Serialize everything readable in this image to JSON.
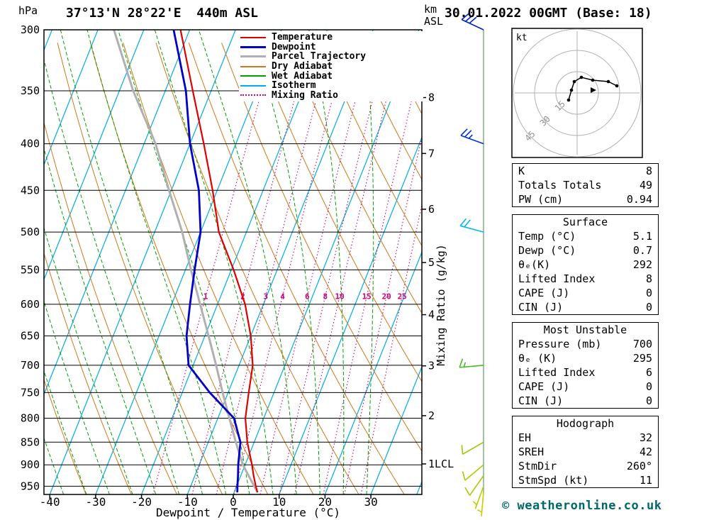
{
  "header": {
    "station_title": "37°13'N 28°22'E  440m ASL",
    "datetime_title": "30.01.2022 00GMT (Base: 18)"
  },
  "axes": {
    "pressure_unit": "hPa",
    "altitude_unit": [
      "km",
      "ASL"
    ],
    "x_axis_title": "Dewpoint / Temperature (°C)",
    "mixing_ratio_axis_title": "Mixing Ratio (g/kg)"
  },
  "legend": [
    {
      "label": "Temperature",
      "color_key": "temperature",
      "style": "solid",
      "weight": 2
    },
    {
      "label": "Dewpoint",
      "color_key": "dewpoint",
      "style": "solid",
      "weight": 3
    },
    {
      "label": "Parcel Trajectory",
      "color_key": "parcel",
      "style": "solid",
      "weight": 3
    },
    {
      "label": "Dry Adiabat",
      "color_key": "dry_adiabat",
      "style": "solid",
      "weight": 2
    },
    {
      "label": "Wet Adiabat",
      "color_key": "wet_adiabat",
      "style": "solid",
      "weight": 2
    },
    {
      "label": "Isotherm",
      "color_key": "isotherm",
      "style": "solid",
      "weight": 2
    },
    {
      "label": "Mixing Ratio",
      "color_key": "mixing_ratio",
      "style": "dotted",
      "weight": 2
    }
  ],
  "chart_data": {
    "type": "skewt_log_p",
    "colors": {
      "temperature": "#e00000",
      "dewpoint": "#0000c8",
      "parcel": "#b0b0b0",
      "dry_adiabat": "#d07818",
      "wet_adiabat": "#00a000",
      "isotherm": "#00ace6",
      "mixing_ratio": "#cc0077"
    },
    "pressure_ticks": [
      300,
      350,
      400,
      450,
      500,
      550,
      600,
      650,
      700,
      750,
      800,
      850,
      900,
      950
    ],
    "pressure_range": [
      300,
      970
    ],
    "temp_ticks": [
      -40,
      -30,
      -20,
      -10,
      0,
      10,
      20,
      30
    ],
    "km_ticks": [
      {
        "label": "8",
        "p": 356
      },
      {
        "label": "7",
        "p": 410
      },
      {
        "label": "6",
        "p": 472
      },
      {
        "label": "5",
        "p": 540
      },
      {
        "label": "4",
        "p": 616
      },
      {
        "label": "3",
        "p": 701
      },
      {
        "label": "2",
        "p": 795
      },
      {
        "label": "1LCL",
        "p": 898
      }
    ],
    "mixing_ratio_lines": [
      1,
      2,
      3,
      4,
      6,
      8,
      10,
      15,
      20,
      25
    ],
    "isotherms": {
      "min": -80,
      "max": 40,
      "step": 10
    },
    "dry_adiabats_theta_c": {
      "min": -40,
      "max": 120,
      "step": 10
    },
    "wet_adiabats_thetaw_c": {
      "min": -40,
      "max": 30,
      "step": 5
    },
    "temperature_profile": [
      [
        965,
        5.1
      ],
      [
        950,
        4.2
      ],
      [
        925,
        2.8
      ],
      [
        900,
        1.5
      ],
      [
        850,
        -1.5
      ],
      [
        800,
        -4.0
      ],
      [
        750,
        -5.5
      ],
      [
        700,
        -7.0
      ],
      [
        650,
        -10.0
      ],
      [
        600,
        -14.0
      ],
      [
        550,
        -19.5
      ],
      [
        500,
        -26.0
      ],
      [
        450,
        -31.0
      ],
      [
        400,
        -37.0
      ],
      [
        350,
        -44.0
      ],
      [
        300,
        -52.0
      ]
    ],
    "dewpoint_profile": [
      [
        965,
        0.7
      ],
      [
        950,
        0.2
      ],
      [
        925,
        -0.6
      ],
      [
        900,
        -1.5
      ],
      [
        850,
        -3.0
      ],
      [
        800,
        -6.5
      ],
      [
        750,
        -14.0
      ],
      [
        700,
        -21.0
      ],
      [
        650,
        -24.0
      ],
      [
        600,
        -26.0
      ],
      [
        550,
        -28.0
      ],
      [
        500,
        -30.0
      ],
      [
        450,
        -34.0
      ],
      [
        400,
        -40.0
      ],
      [
        350,
        -45.5
      ],
      [
        300,
        -53.5
      ]
    ],
    "parcel_profile": [
      [
        965,
        5.1
      ],
      [
        900,
        -0.5
      ],
      [
        850,
        -4.0
      ],
      [
        800,
        -7.5
      ],
      [
        750,
        -11.2
      ],
      [
        700,
        -15.0
      ],
      [
        650,
        -19.2
      ],
      [
        600,
        -23.8
      ],
      [
        550,
        -28.8
      ],
      [
        500,
        -34.0
      ],
      [
        450,
        -40.5
      ],
      [
        400,
        -47.5
      ],
      [
        350,
        -57.0
      ],
      [
        300,
        -66.5
      ]
    ]
  },
  "wind_barbs": {
    "staff_color": "#669966",
    "levels": [
      {
        "p": 300,
        "speed_kt": 30,
        "dir_deg": 295,
        "color": "#0022cc"
      },
      {
        "p": 400,
        "speed_kt": 25,
        "dir_deg": 290,
        "color": "#0033dd"
      },
      {
        "p": 500,
        "speed_kt": 20,
        "dir_deg": 285,
        "color": "#00bbee"
      },
      {
        "p": 700,
        "speed_kt": 15,
        "dir_deg": 265,
        "color": "#44bb22"
      },
      {
        "p": 850,
        "speed_kt": 10,
        "dir_deg": 240,
        "color": "#99cc00"
      },
      {
        "p": 900,
        "speed_kt": 10,
        "dir_deg": 230,
        "color": "#aacc00"
      },
      {
        "p": 925,
        "speed_kt": 8,
        "dir_deg": 215,
        "color": "#aacc00"
      },
      {
        "p": 950,
        "speed_kt": 5,
        "dir_deg": 200,
        "color": "#bbcc00"
      },
      {
        "p": 965,
        "speed_kt": 5,
        "dir_deg": 185,
        "color": "#cccc00"
      }
    ]
  },
  "hodograph": {
    "unit_label": "kt",
    "rings_kt": [
      15,
      30,
      45
    ],
    "trace_uv_kt": [
      [
        -6,
        -5
      ],
      [
        -4,
        2
      ],
      [
        -2,
        8
      ],
      [
        3,
        11
      ],
      [
        11,
        9
      ],
      [
        22,
        8
      ],
      [
        28,
        5
      ]
    ],
    "storm_motion_uv_kt": [
      11,
      2
    ]
  },
  "tables": [
    {
      "title": null,
      "rows": [
        [
          "K",
          "8"
        ],
        [
          "Totals Totals",
          "49"
        ],
        [
          "PW (cm)",
          "0.94"
        ]
      ]
    },
    {
      "title": "Surface",
      "rows": [
        [
          "Temp (°C)",
          "5.1"
        ],
        [
          "Dewp (°C)",
          "0.7"
        ],
        [
          "θₑ(K)",
          "292"
        ],
        [
          "Lifted Index",
          "8"
        ],
        [
          "CAPE (J)",
          "0"
        ],
        [
          "CIN (J)",
          "0"
        ]
      ]
    },
    {
      "title": "Most Unstable",
      "rows": [
        [
          "Pressure (mb)",
          "700"
        ],
        [
          "θₑ (K)",
          "295"
        ],
        [
          "Lifted Index",
          "6"
        ],
        [
          "CAPE (J)",
          "0"
        ],
        [
          "CIN (J)",
          "0"
        ]
      ]
    },
    {
      "title": "Hodograph",
      "rows": [
        [
          "EH",
          "32"
        ],
        [
          "SREH",
          "42"
        ],
        [
          "StmDir",
          "260°"
        ],
        [
          "StmSpd (kt)",
          "11"
        ]
      ]
    }
  ],
  "footer": {
    "credit": "© weatheronline.co.uk"
  }
}
